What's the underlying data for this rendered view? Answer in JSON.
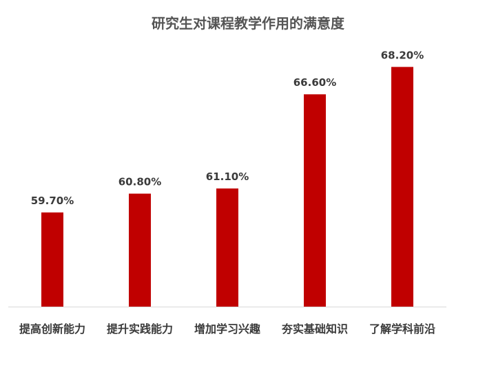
{
  "chart_data": {
    "type": "bar",
    "title": "研究生对课程教学作用的满意度",
    "categories": [
      "提高创新能力",
      "提升实践能力",
      "增加学习兴趣",
      "夯实基础知识",
      "了解学科前沿"
    ],
    "values": [
      59.7,
      60.8,
      61.1,
      66.6,
      68.2
    ],
    "value_labels": [
      "59.70%",
      "60.80%",
      "61.10%",
      "66.60%",
      "68.20%"
    ],
    "ylim": [
      54.2,
      69.7
    ],
    "grid": false,
    "legend": "none",
    "bar_color": "#c00000",
    "axis_color": "#d9d9d9",
    "label_color": "#3a3a3a"
  }
}
